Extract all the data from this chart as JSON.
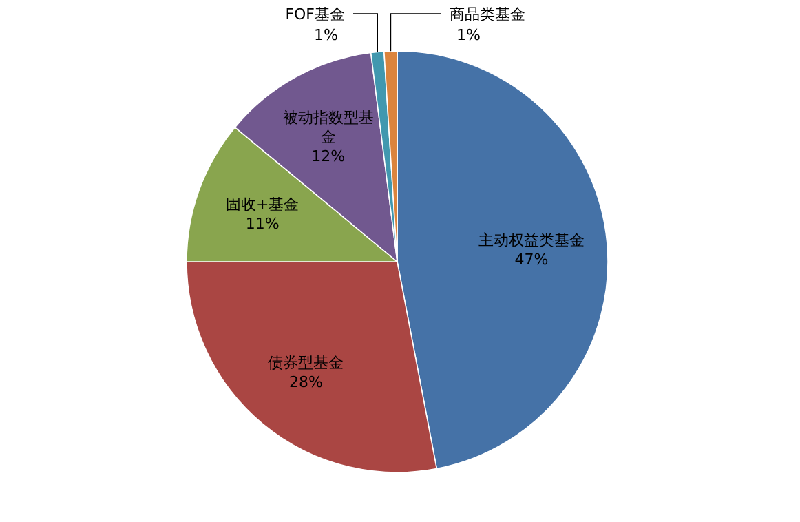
{
  "chart_data": {
    "type": "pie",
    "categories": [
      "主动权益类基金",
      "债券型基金",
      "固收+基金",
      "被动指数型基金",
      "FOF基金",
      "商品类基金"
    ],
    "values": [
      47,
      28,
      11,
      12,
      1,
      1
    ],
    "value_labels": [
      "47%",
      "28%",
      "11%",
      "12%",
      "1%",
      "1%"
    ],
    "colors": [
      "#4572a7",
      "#aa4643",
      "#89a54e",
      "#71588f",
      "#4198af",
      "#db843d"
    ]
  }
}
